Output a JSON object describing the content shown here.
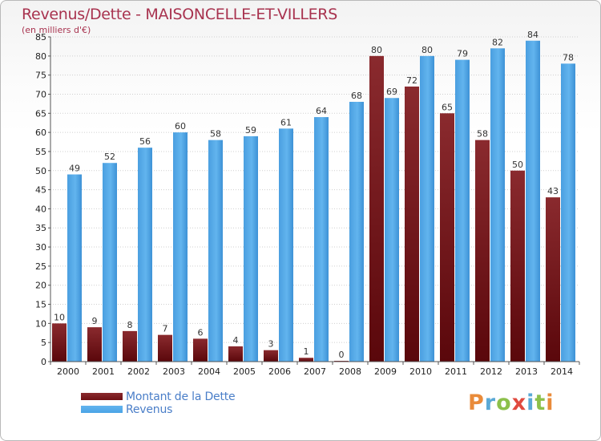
{
  "title": "Revenus/Dette - MAISONCELLE-ET-VILLERS",
  "subtitle": "(en milliers d'€)",
  "brand": {
    "text": "Proxiti",
    "letters": [
      {
        "ch": "P",
        "color": "#e98b3a"
      },
      {
        "ch": "r",
        "color": "#5aa9d6"
      },
      {
        "ch": "o",
        "color": "#8cc04b"
      },
      {
        "ch": "x",
        "color": "#e04a3f"
      },
      {
        "ch": "i",
        "color": "#5aa9d6"
      },
      {
        "ch": "t",
        "color": "#8cc04b"
      },
      {
        "ch": "i",
        "color": "#e98b3a"
      }
    ]
  },
  "legend": [
    {
      "label": "Montant de la Dette",
      "color": "#6e0f14"
    },
    {
      "label": "Revenus",
      "color": "#4aa3e6"
    }
  ],
  "colors": {
    "dette": "#7b1a1f",
    "dette_dark": "#5c0a0e",
    "revenus": "#5aaee8",
    "revenus_dark": "#3b8fd1",
    "grid": "#cfcfcf"
  },
  "chart_data": {
    "type": "bar",
    "categories": [
      "2000",
      "2001",
      "2002",
      "2003",
      "2004",
      "2005",
      "2006",
      "2007",
      "2008",
      "2009",
      "2010",
      "2011",
      "2012",
      "2013",
      "2014"
    ],
    "series": [
      {
        "name": "Montant de la Dette",
        "values": [
          10,
          9,
          8,
          7,
          6,
          4,
          3,
          1,
          0,
          80,
          72,
          65,
          58,
          50,
          43
        ]
      },
      {
        "name": "Revenus",
        "values": [
          49,
          52,
          56,
          60,
          58,
          59,
          61,
          64,
          68,
          69,
          80,
          79,
          82,
          84,
          78
        ]
      }
    ],
    "title": "Revenus/Dette - MAISONCELLE-ET-VILLERS",
    "ylabel": "(en milliers d'€)",
    "ylim": [
      0,
      85
    ],
    "yticks": [
      0,
      5,
      10,
      15,
      20,
      25,
      30,
      35,
      40,
      45,
      50,
      55,
      60,
      65,
      70,
      75,
      80,
      85
    ],
    "grid": true,
    "legend_position": "bottom-left"
  }
}
